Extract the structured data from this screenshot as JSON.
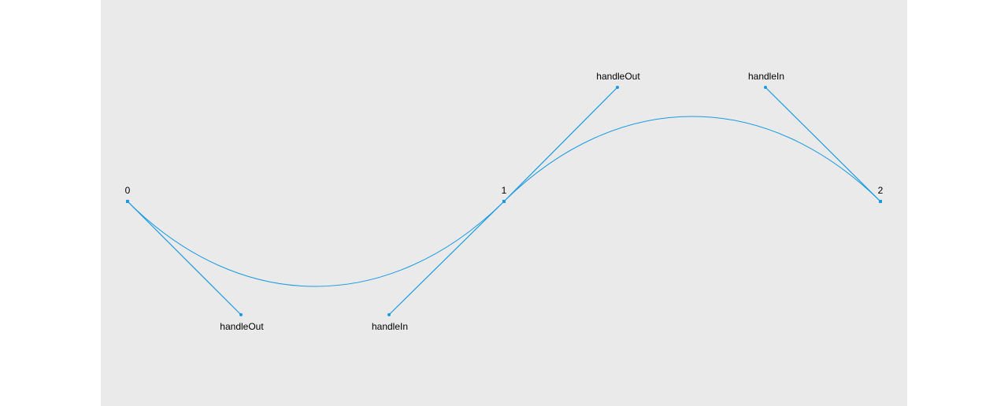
{
  "colors": {
    "background": "#eaeaea",
    "stroke": "#1a9be0"
  },
  "segments": [
    {
      "index_label": "0",
      "handle_in_label": "",
      "handle_out_label": "handleOut"
    },
    {
      "index_label": "1",
      "handle_in_label": "handleIn",
      "handle_out_label": "handleOut"
    },
    {
      "index_label": "2",
      "handle_in_label": "handleIn",
      "handle_out_label": ""
    }
  ]
}
